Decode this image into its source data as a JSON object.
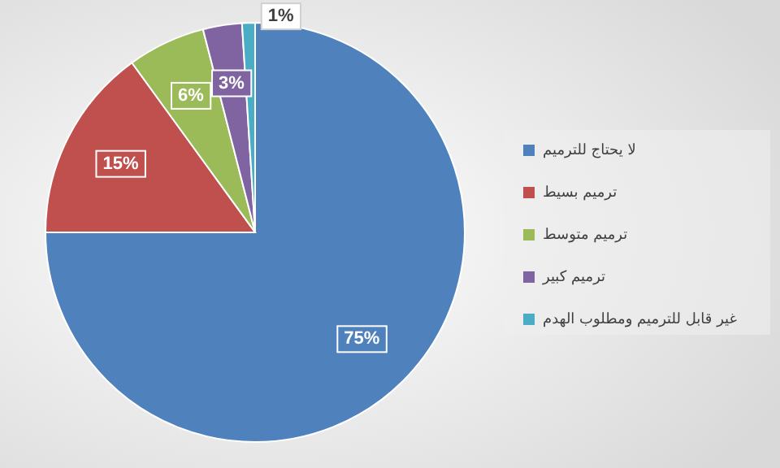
{
  "chart_data": {
    "type": "pie",
    "categories": [
      "لا يحتاج للترميم",
      "ترميم بسيط",
      "ترميم متوسط",
      "ترميم كبير",
      "غير قابل للترميم ومطلوب الهدم"
    ],
    "values": [
      75,
      15,
      6,
      3,
      1
    ],
    "colors": [
      "#4f81bd",
      "#c0504d",
      "#9bbb59",
      "#8064a2",
      "#4bacc6"
    ],
    "value_labels": [
      "75%",
      "15%",
      "6%",
      "3%",
      "1%"
    ],
    "legend": "right"
  }
}
